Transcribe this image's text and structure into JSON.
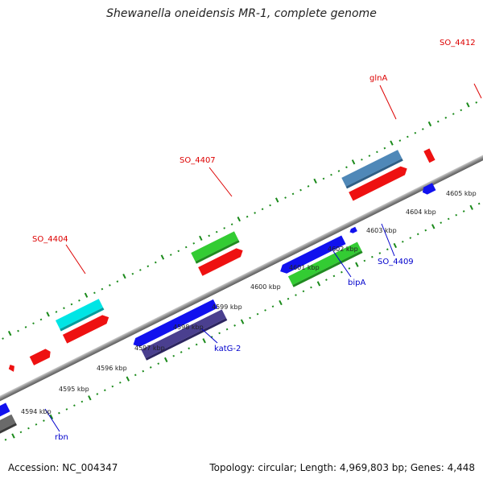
{
  "title": "Shewanella oneidensis MR-1, complete genome",
  "footer": {
    "accession": "Accession: NC_004347",
    "info": "Topology: circular; Length: 4,969,803 bp; Genes: 4,448"
  },
  "colors": {
    "backbone": "#8a8a8a",
    "tick": "#1a8a1a",
    "label_forward": "#dd0000",
    "label_reverse": "#0000cc"
  },
  "position_labels": [
    "4594 kbp",
    "4595 kbp",
    "4596 kbp",
    "4597 kbp",
    "4598 kbp",
    "4599 kbp",
    "4600 kbp",
    "4601 kbp",
    "4602 kbp",
    "4603 kbp",
    "4604 kbp",
    "4605 kbp"
  ],
  "gene_labels": [
    {
      "text": "SO_4412",
      "strand": "forward"
    },
    {
      "text": "glnA",
      "strand": "forward"
    },
    {
      "text": "SO_4407",
      "strand": "forward"
    },
    {
      "text": "SO_4404",
      "strand": "forward"
    },
    {
      "text": "SO_4409",
      "strand": "reverse"
    },
    {
      "text": "bipA",
      "strand": "reverse"
    },
    {
      "text": "katG-2",
      "strand": "reverse"
    },
    {
      "text": "rbn",
      "strand": "reverse"
    }
  ]
}
